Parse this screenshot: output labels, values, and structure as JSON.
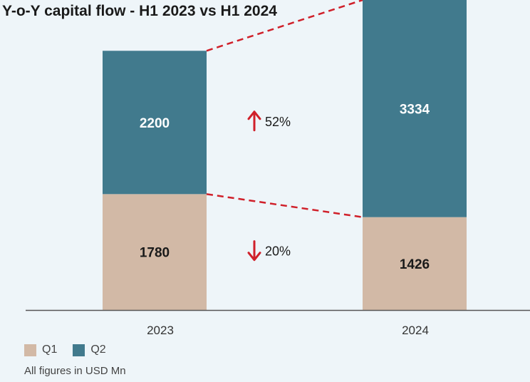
{
  "chart_data": {
    "type": "bar",
    "stacked": true,
    "title": "Y-o-Y capital flow - H1 2023 vs H1 2024",
    "categories": [
      "2023",
      "2024"
    ],
    "series": [
      {
        "name": "Q1",
        "values": [
          1780,
          1426
        ],
        "color": "#d2b9a6"
      },
      {
        "name": "Q2",
        "values": [
          2200,
          3334
        ],
        "color": "#417a8d"
      }
    ],
    "annotations": [
      {
        "series": "Q2",
        "direction": "up",
        "text": "52%"
      },
      {
        "series": "Q1",
        "direction": "down",
        "text": "20%"
      }
    ],
    "ylim": [
      0,
      4760
    ],
    "legend_position": "bottom-left",
    "grid": false,
    "note": "All figures in USD Mn",
    "colors": {
      "connector": "#d0202a",
      "arrow": "#d0202a",
      "axis": "#555555",
      "bar_label": "#1a1a1a",
      "bar_label_dark": "#ffffff"
    }
  }
}
